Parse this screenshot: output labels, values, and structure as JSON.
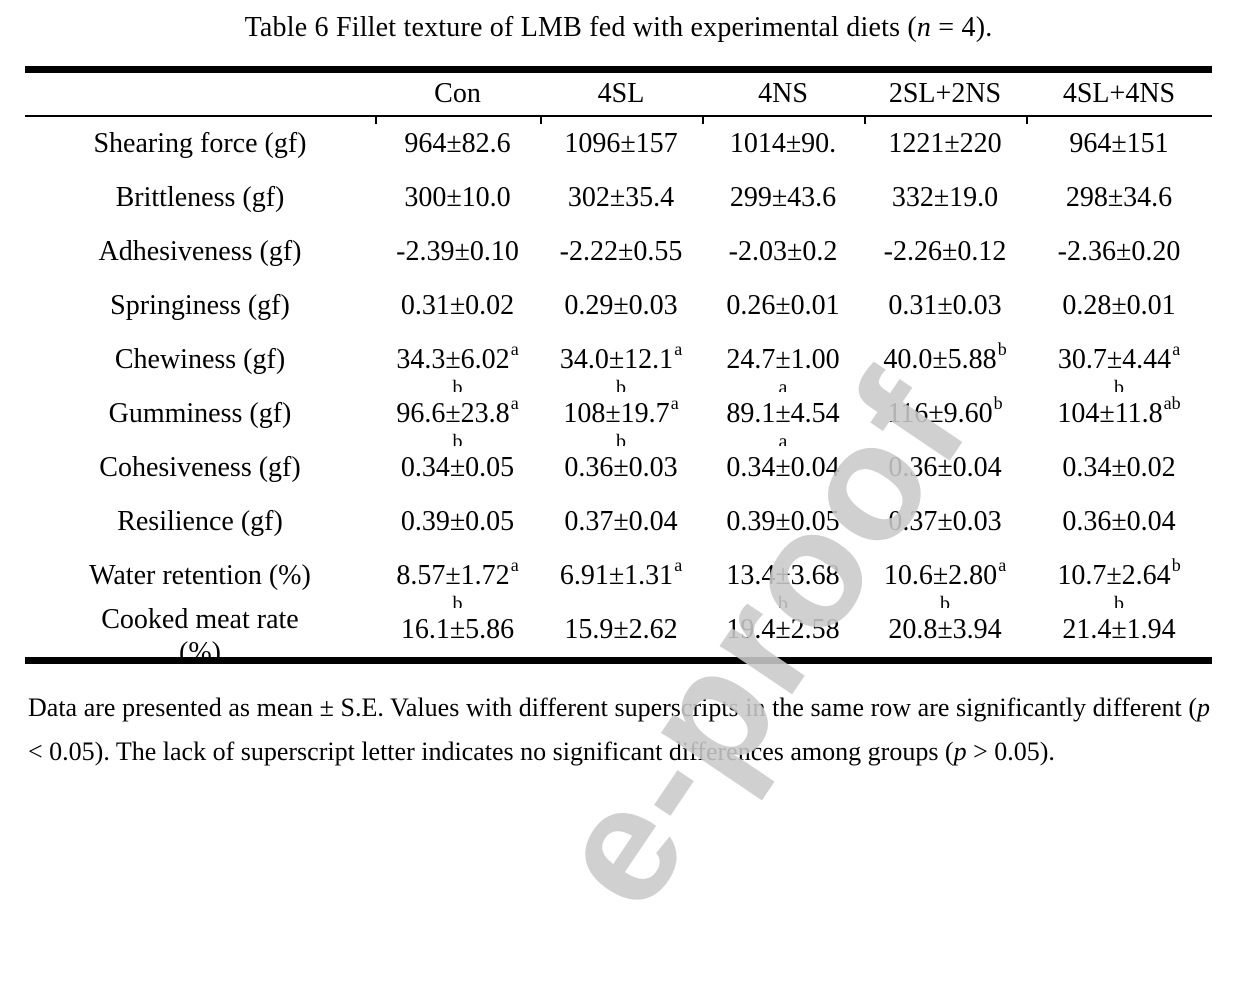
{
  "title": {
    "segments": [
      {
        "t": "Table 6 Fillet texture of LMB fed with experimental diets ("
      },
      {
        "t": "n",
        "i": true
      },
      {
        "t": " = 4)."
      }
    ]
  },
  "table": {
    "columns": [
      "",
      "Con",
      "4SL",
      "4NS",
      "2SL+2NS",
      "4SL+4NS"
    ],
    "rows": [
      {
        "label": "Shearing force (gf)",
        "cells": [
          {
            "v": "964±82.6"
          },
          {
            "v": "1096±157"
          },
          {
            "v": "1014±90."
          },
          {
            "v": "1221±220"
          },
          {
            "v": "964±151"
          }
        ]
      },
      {
        "label": "Brittleness (gf)",
        "cells": [
          {
            "v": "300±10.0"
          },
          {
            "v": "302±35.4"
          },
          {
            "v": "299±43.6"
          },
          {
            "v": "332±19.0"
          },
          {
            "v": "298±34.6"
          }
        ]
      },
      {
        "label": "Adhesiveness (gf)",
        "cells": [
          {
            "v": "-2.39±0.10"
          },
          {
            "v": "-2.22±0.55"
          },
          {
            "v": "-2.03±0.2"
          },
          {
            "v": "-2.26±0.12"
          },
          {
            "v": "-2.36±0.20"
          }
        ]
      },
      {
        "label": "Springiness (gf)",
        "cells": [
          {
            "v": "0.31±0.02"
          },
          {
            "v": "0.29±0.03"
          },
          {
            "v": "0.26±0.01"
          },
          {
            "v": "0.31±0.03"
          },
          {
            "v": "0.28±0.01"
          }
        ]
      },
      {
        "label": "Chewiness (gf)",
        "cells": [
          {
            "v": "34.3±6.02",
            "sup": "a",
            "wrap": "b"
          },
          {
            "v": "34.0±12.1",
            "sup": "a",
            "wrap": "b"
          },
          {
            "v": "24.7±1.00",
            "wrap": "a"
          },
          {
            "v": "40.0±5.88",
            "sup": "b"
          },
          {
            "v": "30.7±4.44",
            "sup": "a",
            "wrap": "b"
          }
        ]
      },
      {
        "label": "Gumminess (gf)",
        "cells": [
          {
            "v": "96.6±23.8",
            "sup": "a",
            "wrap": "b"
          },
          {
            "v": "108±19.7",
            "sup": "a",
            "wrap": "b"
          },
          {
            "v": "89.1±4.54",
            "wrap": "a"
          },
          {
            "v": "116±9.60",
            "sup": "b"
          },
          {
            "v": "104±11.8",
            "sup": "ab"
          }
        ]
      },
      {
        "label": "Cohesiveness (gf)",
        "cells": [
          {
            "v": "0.34±0.05"
          },
          {
            "v": "0.36±0.03"
          },
          {
            "v": "0.34±0.04"
          },
          {
            "v": "0.36±0.04"
          },
          {
            "v": "0.34±0.02"
          }
        ]
      },
      {
        "label": "Resilience (gf)",
        "cells": [
          {
            "v": "0.39±0.05"
          },
          {
            "v": "0.37±0.04"
          },
          {
            "v": "0.39±0.05"
          },
          {
            "v": "0.37±0.03"
          },
          {
            "v": "0.36±0.04"
          }
        ]
      },
      {
        "label": "Water retention (%)",
        "cells": [
          {
            "v": "8.57±1.72",
            "sup": "a",
            "wrap": "b"
          },
          {
            "v": "6.91±1.31",
            "sup": "a"
          },
          {
            "v": "13.4±3.68",
            "wrap": "b"
          },
          {
            "v": "10.6±2.80",
            "sup": "a",
            "wrap": "b"
          },
          {
            "v": "10.7±2.64",
            "sup": "b",
            "wrap": "b"
          }
        ]
      },
      {
        "label": "Cooked meat rate",
        "label2": "(%)",
        "cells": [
          {
            "v": "16.1±5.86"
          },
          {
            "v": "15.9±2.62"
          },
          {
            "v": "19.4±2.58"
          },
          {
            "v": "20.8±3.94"
          },
          {
            "v": "21.4±1.94"
          }
        ]
      }
    ]
  },
  "footnote": {
    "segments": [
      {
        "t": "Data are presented as mean ± S.E. Values with different superscripts in the same row are significantly different ("
      },
      {
        "t": "p",
        "i": true
      },
      {
        "t": " < 0.05). The lack of superscript letter indicates no significant differences among groups ("
      },
      {
        "t": "p",
        "i": true
      },
      {
        "t": " > 0.05)."
      }
    ]
  },
  "watermark": {
    "text": "e-proof",
    "color": "#c9c9c9"
  }
}
